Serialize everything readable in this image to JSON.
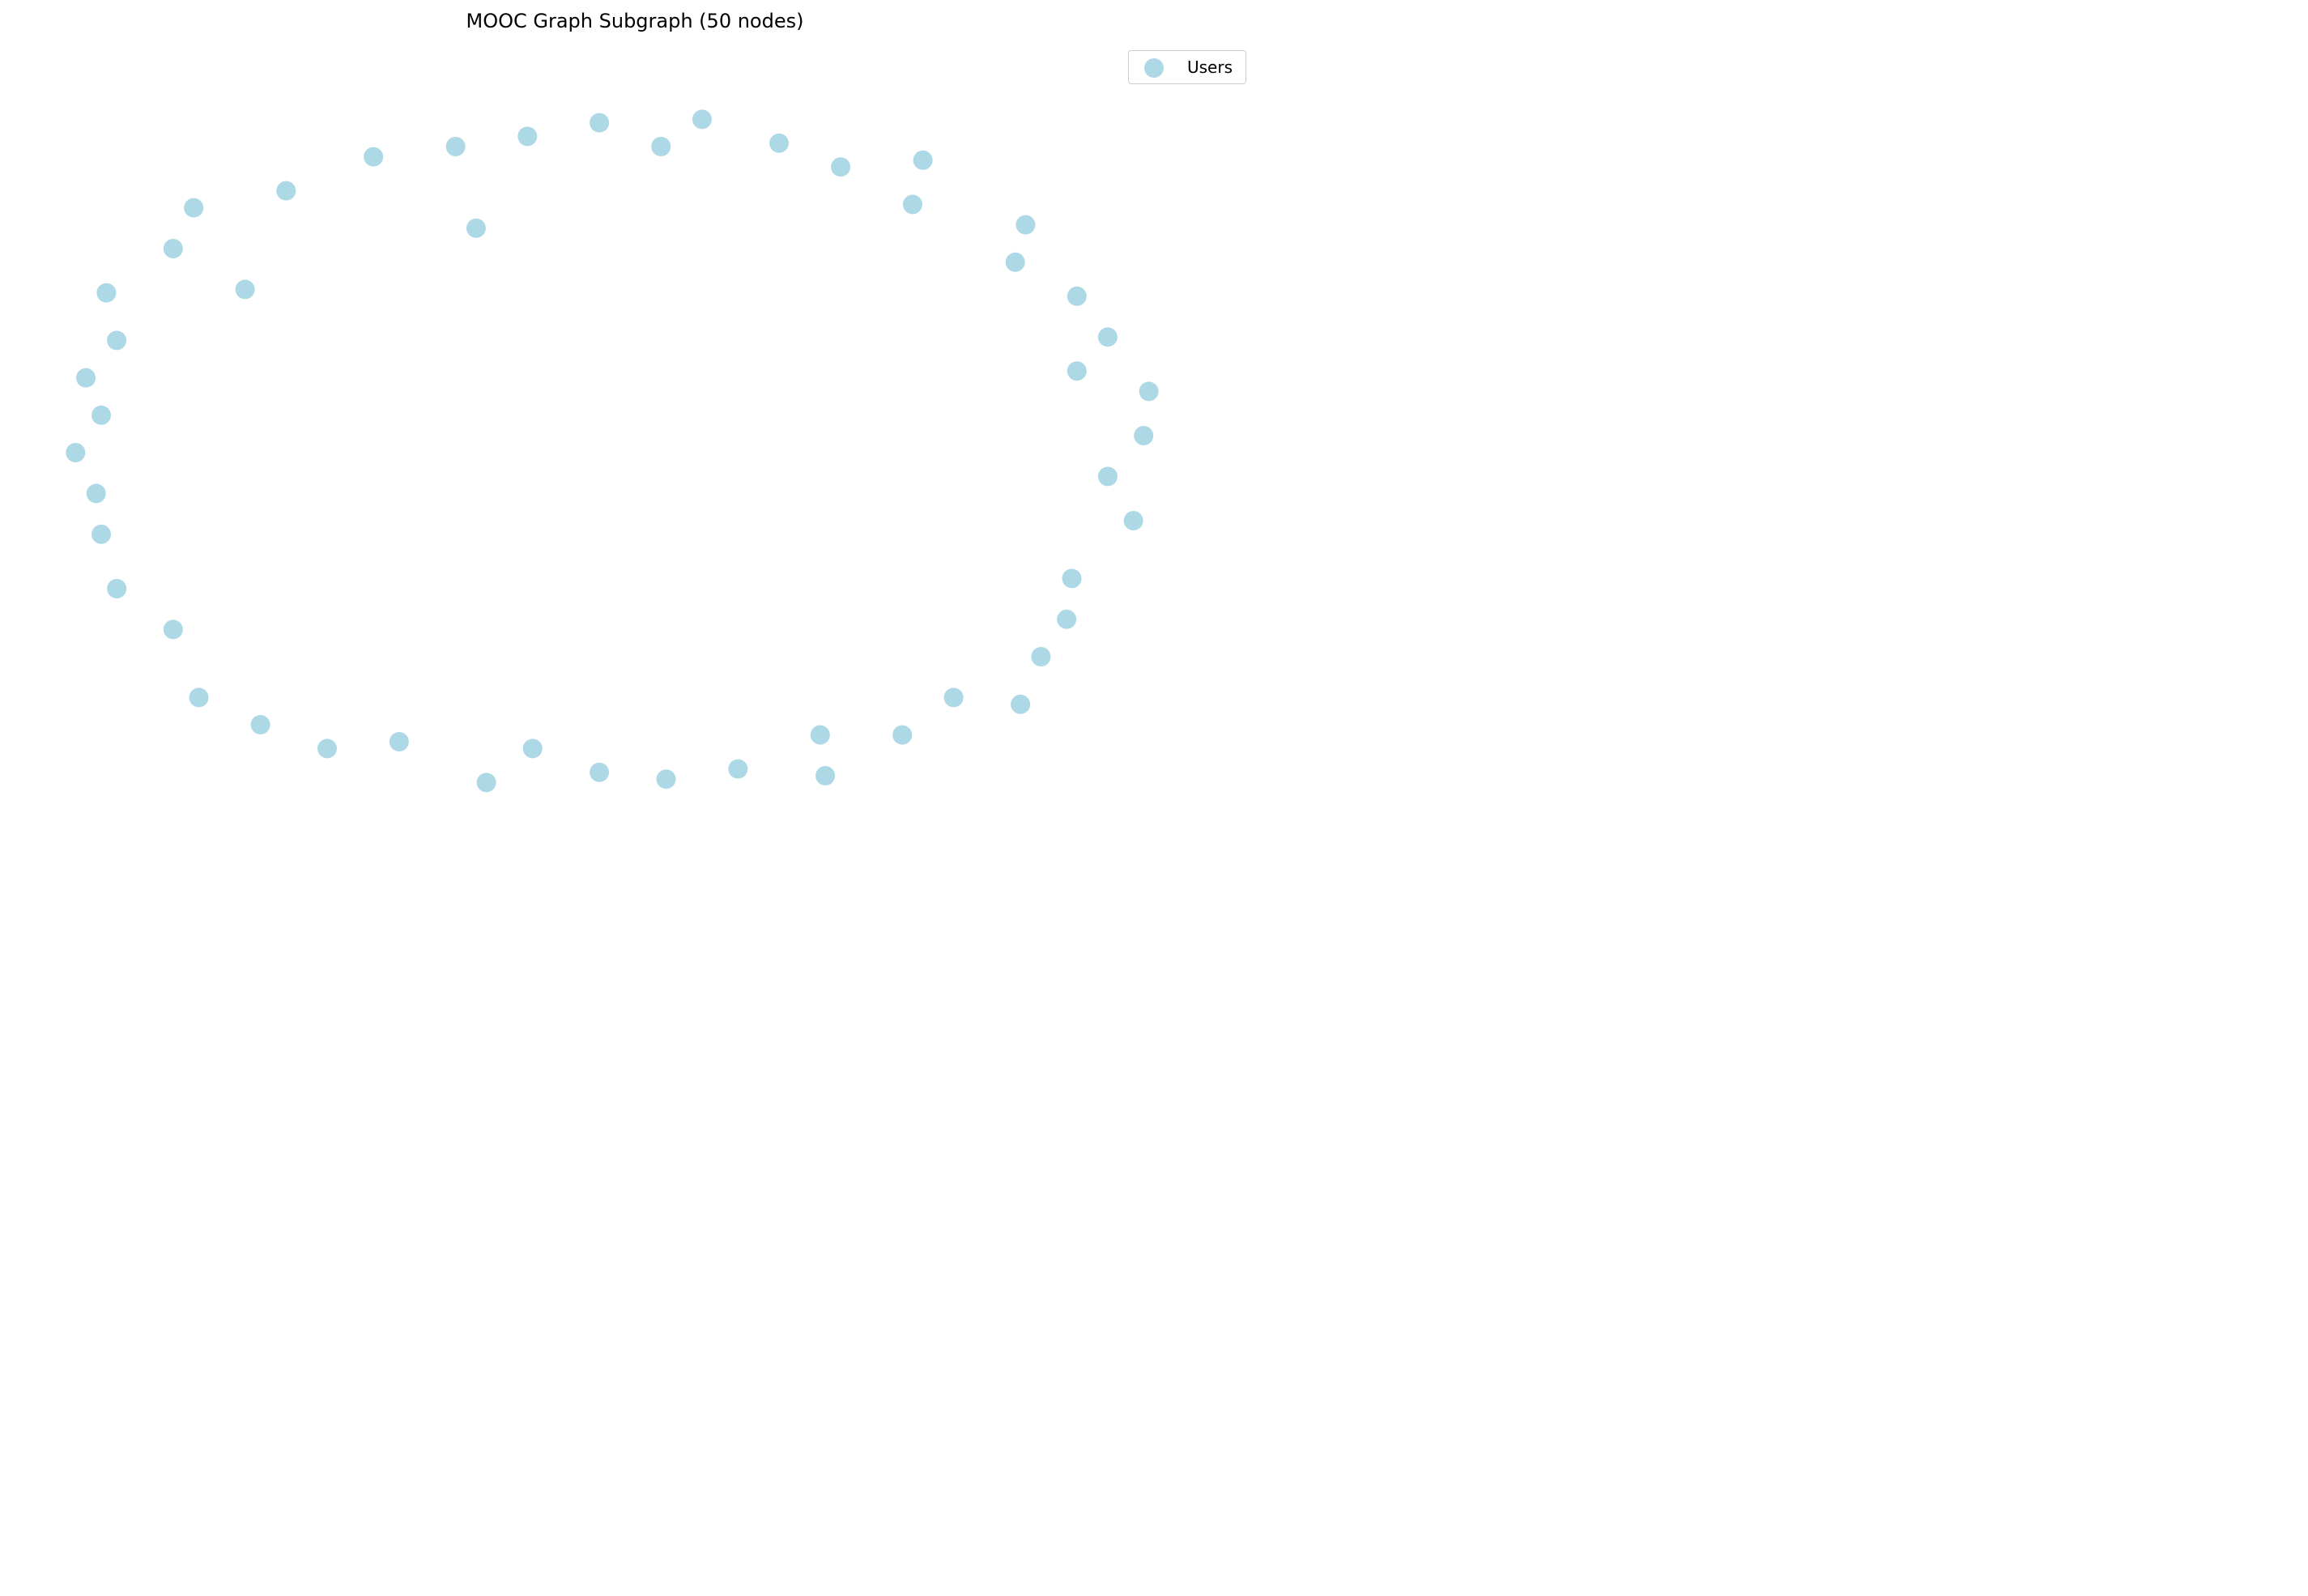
{
  "chart_data": {
    "type": "scatter",
    "title": "MOOC Graph Subgraph (50 nodes)",
    "xlabel": "",
    "ylabel": "",
    "axes_visible": false,
    "grid": false,
    "legend_position": "top-right",
    "node_color": "#add8e6",
    "xlim": [
      -1.1,
      1.1
    ],
    "ylim": [
      -1.1,
      1.1
    ],
    "series": [
      {
        "name": "Users",
        "points": [
          {
            "x": 0.13,
            "y": 0.98
          },
          {
            "x": -0.07,
            "y": 0.97
          },
          {
            "x": -0.21,
            "y": 0.93
          },
          {
            "x": -0.35,
            "y": 0.9
          },
          {
            "x": -0.51,
            "y": 0.87
          },
          {
            "x": -0.68,
            "y": 0.77
          },
          {
            "x": -0.86,
            "y": 0.72
          },
          {
            "x": -0.9,
            "y": 0.6
          },
          {
            "x": -1.03,
            "y": 0.47
          },
          {
            "x": -1.01,
            "y": 0.33
          },
          {
            "x": -1.07,
            "y": 0.22
          },
          {
            "x": -1.04,
            "y": 0.11
          },
          {
            "x": -1.09,
            "y": 0.0
          },
          {
            "x": -1.05,
            "y": -0.12
          },
          {
            "x": -1.04,
            "y": -0.24
          },
          {
            "x": -1.01,
            "y": -0.4
          },
          {
            "x": -0.9,
            "y": -0.52
          },
          {
            "x": -0.85,
            "y": -0.72
          },
          {
            "x": -0.73,
            "y": -0.8
          },
          {
            "x": -0.6,
            "y": -0.87
          },
          {
            "x": -0.46,
            "y": -0.85
          },
          {
            "x": -0.29,
            "y": -0.97
          },
          {
            "x": -0.2,
            "y": -0.87
          },
          {
            "x": -0.07,
            "y": -0.94
          },
          {
            "x": 0.06,
            "y": -0.96
          },
          {
            "x": 0.2,
            "y": -0.93
          },
          {
            "x": 0.37,
            "y": -0.95
          },
          {
            "x": 0.36,
            "y": -0.83
          },
          {
            "x": 0.52,
            "y": -0.83
          },
          {
            "x": 0.62,
            "y": -0.72
          },
          {
            "x": 0.75,
            "y": -0.74
          },
          {
            "x": 0.79,
            "y": -0.6
          },
          {
            "x": 0.84,
            "y": -0.49
          },
          {
            "x": 0.85,
            "y": -0.37
          },
          {
            "x": 0.97,
            "y": -0.2
          },
          {
            "x": 0.92,
            "y": -0.07
          },
          {
            "x": 0.99,
            "y": 0.05
          },
          {
            "x": 1.0,
            "y": 0.18
          },
          {
            "x": 0.86,
            "y": 0.24
          },
          {
            "x": 0.92,
            "y": 0.34
          },
          {
            "x": 0.86,
            "y": 0.46
          },
          {
            "x": 0.74,
            "y": 0.56
          },
          {
            "x": 0.76,
            "y": 0.67
          },
          {
            "x": 0.54,
            "y": 0.73
          },
          {
            "x": 0.56,
            "y": 0.86
          },
          {
            "x": 0.4,
            "y": 0.84
          },
          {
            "x": 0.28,
            "y": 0.91
          },
          {
            "x": 0.05,
            "y": 0.9
          },
          {
            "x": -0.31,
            "y": 0.66
          },
          {
            "x": -0.76,
            "y": 0.48
          }
        ]
      }
    ]
  }
}
